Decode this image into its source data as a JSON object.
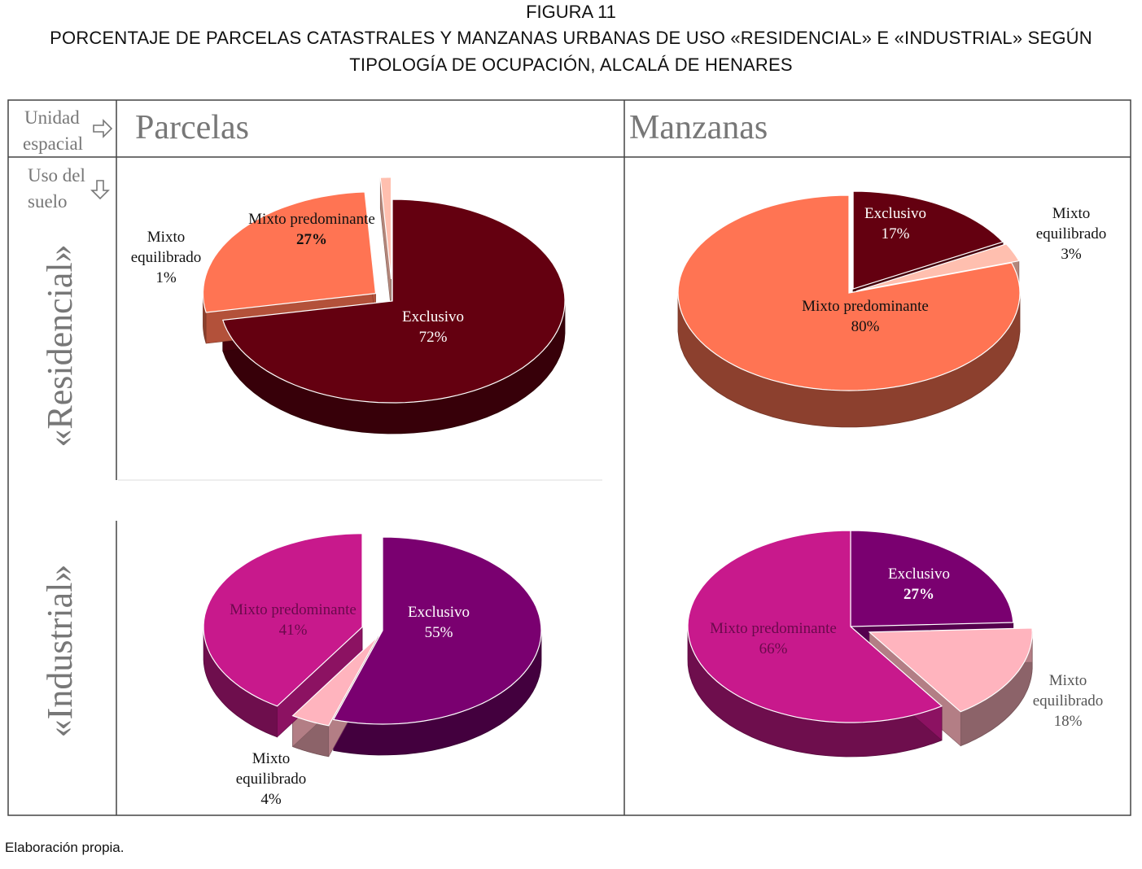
{
  "figure": {
    "label": "FIGURA 11",
    "title": "PORCENTAJE DE PARCELAS CATASTRALES Y MANZANAS URBANAS DE USO «RESIDENCIAL» E «INDUSTRIAL» SEGÚN TIPOLOGÍA DE OCUPACIÓN, ALCALÁ DE HENARES",
    "source": "Elaboración propia."
  },
  "table": {
    "corner_top_1": "Unidad",
    "corner_top_2": "espacial",
    "corner_bottom_1": "Uso del",
    "corner_bottom_2": "suelo",
    "columns": [
      "Parcelas",
      "Manzanas"
    ],
    "rows": [
      "«Residencial»",
      "«Industrial»"
    ]
  },
  "colors": {
    "residencial_exclusivo": "#640010",
    "residencial_mixto_predominante": "#FF7453",
    "residencial_mixto_equilibrado": "#FFBFAF",
    "industrial_exclusivo": "#7A0070",
    "industrial_mixto_predominante": "#C8198C",
    "industrial_mixto_equilibrado": "#FFB4BE",
    "grid": "#444444",
    "header_text": "#777777"
  },
  "chart_data": [
    {
      "type": "pie",
      "panel": "Parcelas / «Residencial»",
      "categories": [
        "Exclusivo",
        "Mixto predominante",
        "Mixto equilibrado"
      ],
      "values": [
        72,
        27,
        1
      ],
      "labels": {
        "Exclusivo": [
          "Exclusivo",
          "72%"
        ],
        "Mixto predominante": [
          "Mixto  predominante",
          "27%"
        ],
        "Mixto equilibrado": [
          "Mixto",
          "equilibrado",
          "1%"
        ]
      }
    },
    {
      "type": "pie",
      "panel": "Manzanas / «Residencial»",
      "categories": [
        "Exclusivo",
        "Mixto equilibrado",
        "Mixto predominante"
      ],
      "values": [
        17,
        3,
        80
      ],
      "labels": {
        "Exclusivo": [
          "Exclusivo",
          "17%"
        ],
        "Mixto equilibrado": [
          "Mixto",
          "equilibrado",
          "3%"
        ],
        "Mixto predominante": [
          "Mixto  predominante",
          "80%"
        ]
      }
    },
    {
      "type": "pie",
      "panel": "Parcelas / «Industrial»",
      "categories": [
        "Exclusivo",
        "Mixto equilibrado",
        "Mixto predominante"
      ],
      "values": [
        55,
        4,
        41
      ],
      "labels": {
        "Exclusivo": [
          "Exclusivo",
          "55%"
        ],
        "Mixto equilibrado": [
          "Mixto",
          "equilibrado",
          "4%"
        ],
        "Mixto predominante": [
          "Mixto  predominante",
          "41%"
        ]
      }
    },
    {
      "type": "pie",
      "panel": "Manzanas / «Industrial»",
      "categories": [
        "Exclusivo",
        "Mixto equilibrado",
        "Mixto predominante"
      ],
      "values": [
        27,
        18,
        66
      ],
      "labels": {
        "Exclusivo": [
          "Exclusivo",
          "27%"
        ],
        "Mixto equilibrado": [
          "Mixto",
          "equilibrado",
          "18%"
        ],
        "Mixto predominante": [
          "Mixto  predominante",
          "66%"
        ]
      }
    }
  ]
}
